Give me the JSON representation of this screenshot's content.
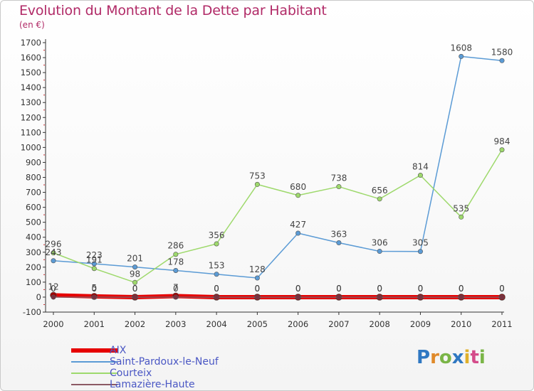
{
  "title": "Evolution du Montant de la Dette par Habitant",
  "subtitle": "(en €)",
  "logo": {
    "text": "Proxiti",
    "letters": [
      {
        "ch": "P",
        "color": "#2f78c2"
      },
      {
        "ch": "r",
        "color": "#e08a2a"
      },
      {
        "ch": "o",
        "color": "#7ab547"
      },
      {
        "ch": "x",
        "color": "#2f78c2"
      },
      {
        "ch": "i",
        "color": "#e0b02a"
      },
      {
        "ch": "t",
        "color": "#d44b8a"
      },
      {
        "ch": "i",
        "color": "#7ab547"
      }
    ]
  },
  "chart_data": {
    "type": "line",
    "title": "Evolution du Montant de la Dette par Habitant",
    "ylabel": "(en €)",
    "xlabel": "",
    "categories": [
      "2000",
      "2001",
      "2002",
      "2003",
      "2004",
      "2005",
      "2006",
      "2007",
      "2008",
      "2009",
      "2010",
      "2011"
    ],
    "ylim": [
      -100,
      1700
    ],
    "yticks": [
      -100,
      0,
      100,
      200,
      300,
      400,
      500,
      600,
      700,
      800,
      900,
      1000,
      1100,
      1200,
      1300,
      1400,
      1500,
      1600,
      1700
    ],
    "grid": false,
    "legend_position": "bottom-left",
    "series": [
      {
        "name": "AIX",
        "color": "#e60000",
        "width": 6,
        "values": [
          12,
          5,
          0,
          7,
          0,
          0,
          0,
          0,
          0,
          0,
          0,
          0
        ],
        "labels": [
          "12",
          "5",
          "0",
          "7",
          "0",
          "0",
          "0",
          "0",
          "0",
          "0",
          "0",
          "0"
        ]
      },
      {
        "name": "Saint-Pardoux-le-Neuf",
        "color": "#5b9bd5",
        "width": 1.5,
        "values": [
          243,
          223,
          201,
          178,
          153,
          128,
          427,
          363,
          306,
          305,
          1608,
          1580
        ],
        "labels": [
          "243",
          "223",
          "201",
          "178",
          "153",
          "128",
          "427",
          "363",
          "306",
          "305",
          "1608",
          "1580"
        ]
      },
      {
        "name": "Courteix",
        "color": "#9ed96c",
        "width": 1.5,
        "values": [
          296,
          191,
          98,
          286,
          356,
          753,
          680,
          738,
          656,
          814,
          535,
          984
        ],
        "labels": [
          "296",
          "191",
          "98",
          "286",
          "356",
          "753",
          "680",
          "738",
          "656",
          "814",
          "535",
          "984"
        ]
      },
      {
        "name": "Lamazière-Haute",
        "color": "#8c5a64",
        "width": 1.5,
        "values": [
          0,
          0,
          0,
          0,
          0,
          0,
          0,
          0,
          0,
          0,
          0,
          0
        ],
        "labels": [
          "0",
          "0",
          "0",
          "0",
          "0",
          "0",
          "0",
          "0",
          "0",
          "0",
          "0",
          "0"
        ]
      }
    ]
  }
}
